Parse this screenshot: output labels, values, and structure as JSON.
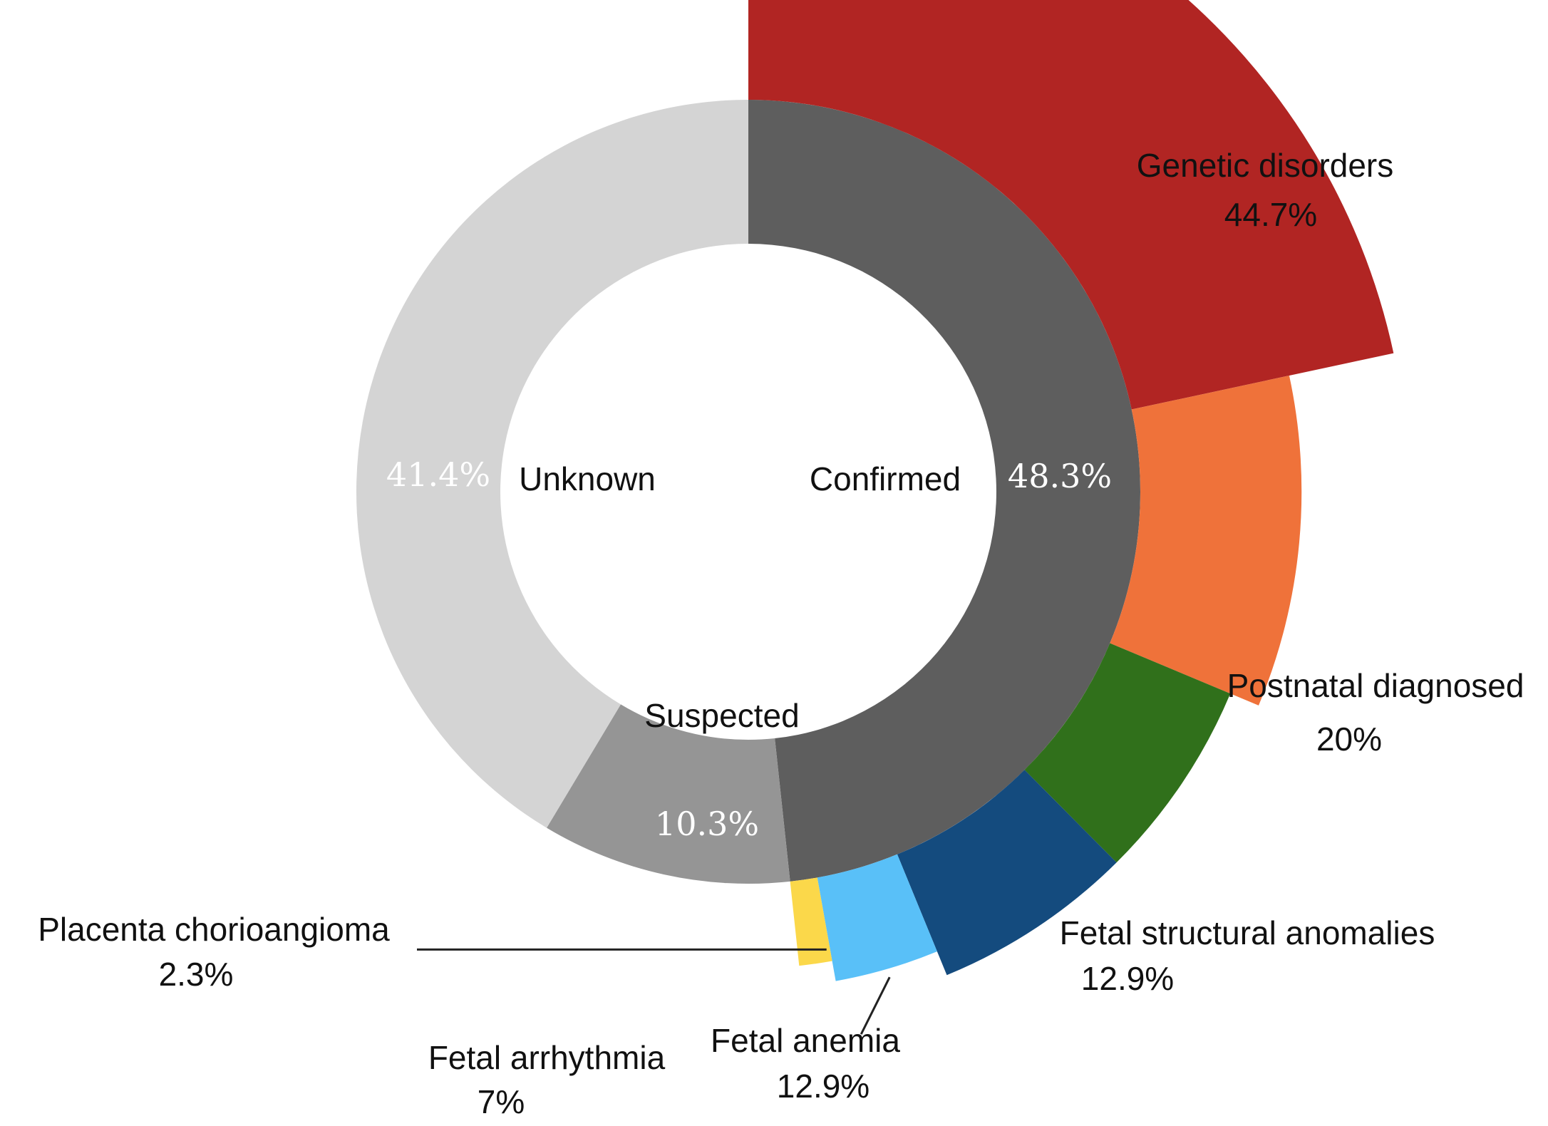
{
  "chart_data": {
    "type": "pie",
    "inner_ring": {
      "slices": [
        {
          "name": "Confirmed",
          "value": 48.3,
          "value_label": "48.3%",
          "color": "#5e5e5e"
        },
        {
          "name": "Suspected",
          "value": 10.3,
          "value_label": "10.3%",
          "color": "#959595"
        },
        {
          "name": "Unknown",
          "value": 41.4,
          "value_label": "41.4%",
          "color": "#d4d4d4"
        }
      ]
    },
    "outer_ring": {
      "slices": [
        {
          "name": "Genetic disorders",
          "value": 44.7,
          "value_label": "44.7%",
          "color": "#b12523"
        },
        {
          "name": "Postnatal diagnosed",
          "value": 20,
          "value_label": "20%",
          "color": "#ef723a"
        },
        {
          "name": "Fetal structural anomalies",
          "value": 12.9,
          "value_label": "12.9%",
          "color": "#30701b"
        },
        {
          "name": "Fetal anemia",
          "value": 12.9,
          "value_label": "12.9%",
          "color": "#144b7e"
        },
        {
          "name": "Fetal arrhythmia",
          "value": 7,
          "value_label": "7%",
          "color": "#59c0f8"
        },
        {
          "name": "Placenta chorioangioma",
          "value": 2.3,
          "value_label": "2.3%",
          "color": "#fbd84a"
        }
      ]
    }
  }
}
